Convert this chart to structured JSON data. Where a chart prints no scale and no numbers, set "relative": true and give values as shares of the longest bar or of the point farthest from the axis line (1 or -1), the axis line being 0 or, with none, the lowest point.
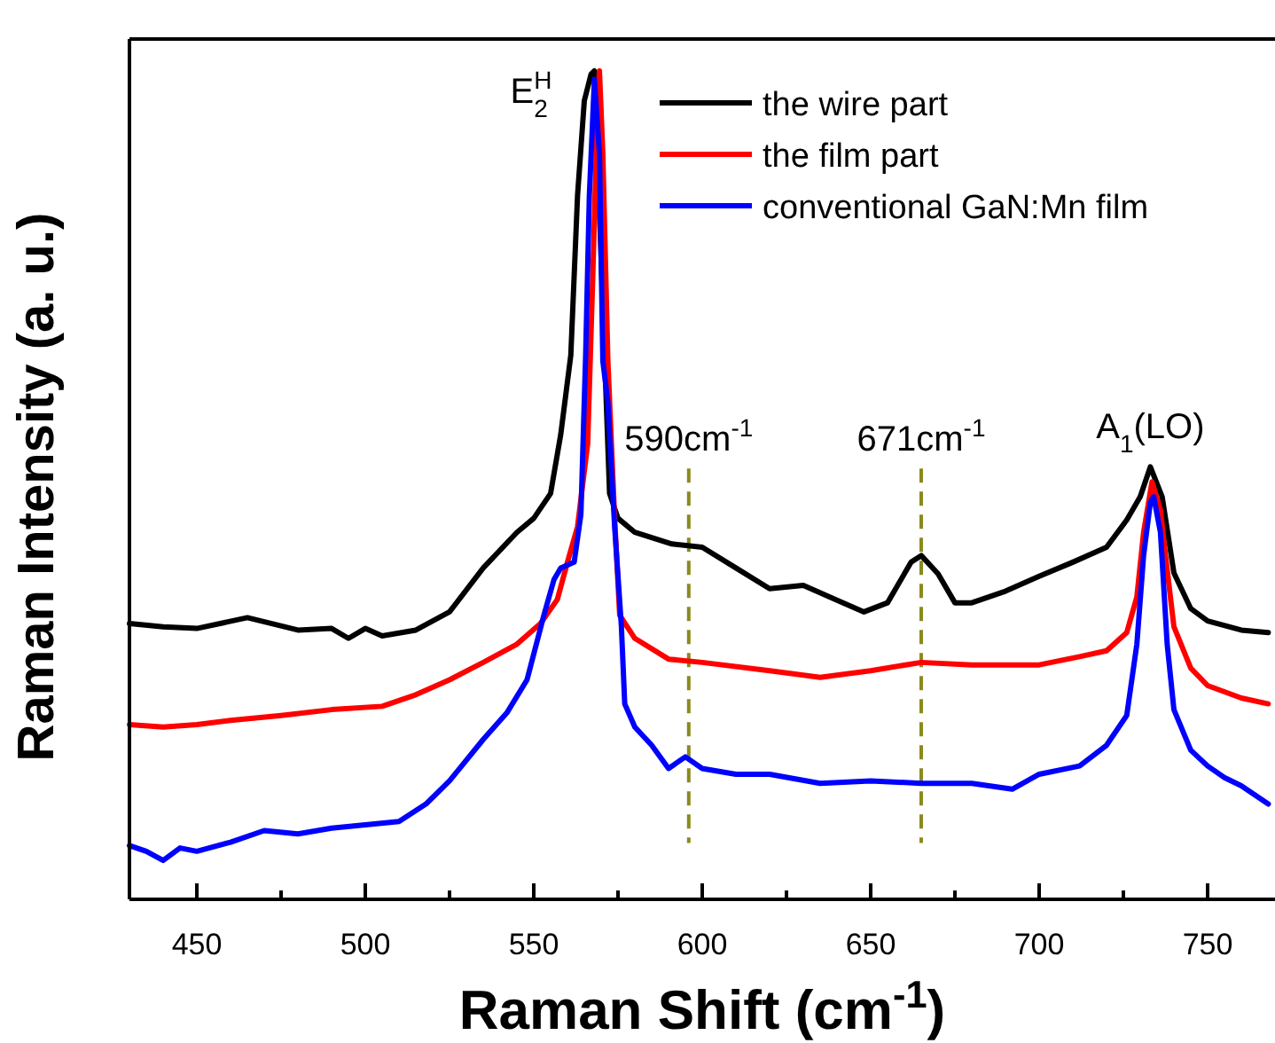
{
  "chart_data": {
    "type": "line",
    "relative": true,
    "xlabel": "Raman Shift (cm$^{-1}$)",
    "ylabel": "Raman Intensity (a. u.)",
    "xlim": [
      430,
      770
    ],
    "xticks": [
      450,
      {
        "value": 475,
        "label": null
      },
      500,
      {
        "value": 525,
        "label": null
      },
      550,
      {
        "value": 575,
        "label": null
      },
      600,
      {
        "value": 625,
        "label": null
      },
      650,
      {
        "value": 675,
        "label": null
      },
      700,
      {
        "value": 725,
        "label": null
      },
      750
    ],
    "legend": "top right",
    "line_style": "solid",
    "marker": "none",
    "grid": false,
    "series": [
      {
        "name": "the wire part",
        "color": "#000000",
        "x": [
          430,
          440,
          450,
          465,
          480,
          490,
          495,
          500,
          505,
          515,
          525,
          535,
          545,
          550,
          555,
          558,
          561,
          563,
          565,
          567,
          568,
          569,
          570,
          571,
          572.5,
          575,
          580,
          591,
          600,
          610,
          620,
          630,
          640,
          648,
          655,
          662,
          665,
          670,
          675,
          680,
          690,
          700,
          710,
          720,
          726,
          730,
          733,
          736.5,
          740,
          745,
          750,
          760,
          768
        ],
        "values": [
          0.333,
          0.329,
          0.327,
          0.34,
          0.325,
          0.327,
          0.315,
          0.327,
          0.318,
          0.325,
          0.347,
          0.4,
          0.443,
          0.46,
          0.49,
          0.561,
          0.657,
          0.85,
          0.964,
          0.996,
          1.0,
          null,
          null,
          null,
          0.49,
          0.46,
          0.443,
          0.429,
          0.425,
          0.4,
          0.375,
          0.379,
          0.361,
          0.347,
          0.358,
          0.407,
          0.415,
          0.393,
          0.358,
          0.358,
          0.372,
          0.39,
          0.407,
          0.425,
          0.458,
          0.486,
          0.522,
          0.486,
          0.394,
          0.351,
          0.336,
          0.325,
          0.322
        ]
      },
      {
        "name": "the film part",
        "color": "#ff0000",
        "x": [
          430,
          440,
          450,
          460,
          475,
          490,
          505,
          515,
          525,
          535,
          545,
          552,
          557,
          560,
          563,
          566,
          567.5,
          569,
          569.5,
          570.5,
          572,
          574,
          575.5,
          580,
          590,
          600,
          620,
          635,
          650,
          665,
          680,
          700,
          712,
          720,
          726,
          729,
          731,
          733.5,
          736,
          737.5,
          740,
          745,
          750,
          760,
          768
        ],
        "values": [
          0.211,
          0.208,
          0.211,
          0.216,
          0.222,
          0.229,
          0.233,
          0.247,
          0.265,
          0.286,
          0.308,
          0.333,
          0.362,
          0.407,
          0.45,
          0.55,
          0.75,
          0.97,
          1.0,
          0.9,
          0.65,
          0.46,
          0.343,
          0.315,
          0.29,
          0.286,
          0.276,
          0.268,
          0.276,
          0.286,
          0.283,
          0.283,
          0.293,
          0.3,
          0.322,
          0.365,
          0.443,
          0.504,
          0.47,
          0.415,
          0.329,
          0.279,
          0.258,
          0.243,
          0.236
        ]
      },
      {
        "name": "conventional GaN:Mn film",
        "color": "#0000ff",
        "x": [
          430,
          435,
          440,
          445,
          450,
          460,
          470,
          480,
          490,
          500,
          510,
          518,
          525,
          535,
          542,
          548,
          553,
          556,
          558,
          562,
          564,
          565.4,
          566.5,
          568,
          569.5,
          570.5,
          572,
          574,
          576,
          577,
          580,
          585,
          590,
          595,
          600,
          610,
          620,
          635,
          650,
          665,
          680,
          692,
          700,
          712,
          720,
          726,
          729,
          731,
          733,
          734,
          736,
          738,
          740,
          745,
          750,
          755,
          760,
          768
        ],
        "values": [
          0.065,
          0.058,
          0.047,
          0.062,
          0.058,
          0.069,
          0.083,
          0.079,
          0.086,
          0.09,
          0.094,
          0.115,
          0.143,
          0.193,
          0.225,
          0.265,
          0.343,
          0.386,
          0.4,
          0.407,
          0.465,
          0.657,
          0.85,
          0.99,
          0.9,
          0.65,
          0.6,
          0.45,
          0.33,
          0.236,
          0.208,
          0.186,
          0.158,
          0.172,
          0.158,
          0.151,
          0.151,
          0.14,
          0.143,
          0.14,
          0.14,
          0.133,
          0.151,
          0.161,
          0.186,
          0.222,
          0.308,
          0.415,
          0.479,
          0.486,
          0.443,
          0.308,
          0.229,
          0.18,
          0.161,
          0.147,
          0.137,
          0.115
        ]
      }
    ],
    "ref_lines": [
      {
        "axis": "x",
        "value": 596,
        "label": "590cm$^{-1}$",
        "color": "#8a8a1e",
        "line_style": "dashed"
      },
      {
        "axis": "x",
        "value": 665,
        "label": "671cm$^{-1}$",
        "color": "#8a8a1e",
        "line_style": "dashed"
      }
    ],
    "annotations": [
      {
        "text": "E$_{2}$$^{H}$",
        "x": 568,
        "y": 1.0
      },
      {
        "text": "A$_{1}$(LO)",
        "x": 733,
        "y": 0.522
      }
    ]
  }
}
